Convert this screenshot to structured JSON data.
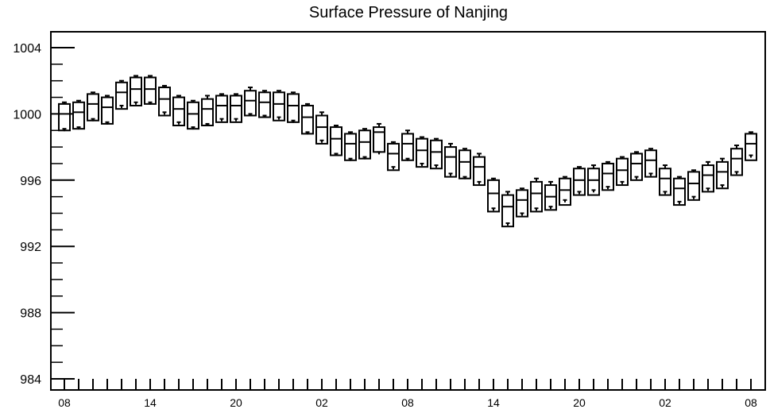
{
  "chart_data": {
    "type": "boxplot",
    "title": "Surface Pressure of Nanjing",
    "xlabel": "",
    "ylabel": "",
    "ylim": [
      984,
      1005
    ],
    "yticks": [
      984,
      988,
      992,
      996,
      1000,
      1004
    ],
    "y_minor_step": 1,
    "x_tick_labels": [
      "08",
      "14",
      "20",
      "02",
      "08",
      "14",
      "20",
      "02",
      "08"
    ],
    "x_tick_positions": [
      0,
      6,
      12,
      18,
      24,
      30,
      36,
      42,
      48
    ],
    "grid": false,
    "series": [
      {
        "boxes": [
          {
            "x": 0,
            "whisker_high": 1000.7,
            "q3": 1000.6,
            "median": 1000.0,
            "q1": 999.0,
            "mean": 999.1
          },
          {
            "x": 1,
            "whisker_high": 1000.8,
            "q3": 1000.7,
            "median": 1000.1,
            "q1": 999.1,
            "mean": 999.2
          },
          {
            "x": 2,
            "whisker_high": 1001.3,
            "q3": 1001.2,
            "median": 1000.6,
            "q1": 999.6,
            "mean": 999.7
          },
          {
            "x": 3,
            "whisker_high": 1001.1,
            "q3": 1001.0,
            "median": 1000.4,
            "q1": 999.4,
            "mean": 999.5
          },
          {
            "x": 4,
            "whisker_high": 1002.0,
            "q3": 1001.9,
            "median": 1001.3,
            "q1": 1000.3,
            "mean": 1000.5
          },
          {
            "x": 5,
            "whisker_high": 1002.3,
            "q3": 1002.2,
            "median": 1001.5,
            "q1": 1000.5,
            "mean": 1000.7
          },
          {
            "x": 6,
            "whisker_high": 1002.3,
            "q3": 1002.2,
            "median": 1001.5,
            "q1": 1000.6,
            "mean": 1000.7
          },
          {
            "x": 7,
            "whisker_high": 1001.7,
            "q3": 1001.6,
            "median": 1000.9,
            "q1": 999.9,
            "mean": 1000.1
          },
          {
            "x": 8,
            "whisker_high": 1001.1,
            "q3": 1001.0,
            "median": 1000.3,
            "q1": 999.3,
            "mean": 999.5
          },
          {
            "x": 9,
            "whisker_high": 1000.8,
            "q3": 1000.7,
            "median": 1000.0,
            "q1": 999.1,
            "mean": 999.2
          },
          {
            "x": 10,
            "whisker_high": 1001.1,
            "q3": 1000.9,
            "median": 1000.3,
            "q1": 999.3,
            "mean": 999.4
          },
          {
            "x": 11,
            "whisker_high": 1001.2,
            "q3": 1001.1,
            "median": 1000.5,
            "q1": 999.5,
            "mean": 999.7
          },
          {
            "x": 12,
            "whisker_high": 1001.2,
            "q3": 1001.1,
            "median": 1000.5,
            "q1": 999.5,
            "mean": 999.7
          },
          {
            "x": 13,
            "whisker_high": 1001.6,
            "q3": 1001.4,
            "median": 1000.8,
            "q1": 999.9,
            "mean": 1000.0
          },
          {
            "x": 14,
            "whisker_high": 1001.4,
            "q3": 1001.3,
            "median": 1000.7,
            "q1": 999.8,
            "mean": 999.9
          },
          {
            "x": 15,
            "whisker_high": 1001.4,
            "q3": 1001.3,
            "median": 1000.6,
            "q1": 999.6,
            "mean": 999.8
          },
          {
            "x": 16,
            "whisker_high": 1001.3,
            "q3": 1001.2,
            "median": 1000.5,
            "q1": 999.5,
            "mean": 999.6
          },
          {
            "x": 17,
            "whisker_high": 1000.6,
            "q3": 1000.5,
            "median": 999.8,
            "q1": 998.8,
            "mean": 998.9
          },
          {
            "x": 18,
            "whisker_high": 1000.1,
            "q3": 999.9,
            "median": 999.2,
            "q1": 998.2,
            "mean": 998.4
          },
          {
            "x": 19,
            "whisker_high": 999.3,
            "q3": 999.2,
            "median": 998.5,
            "q1": 997.5,
            "mean": 997.6
          },
          {
            "x": 20,
            "whisker_high": 998.9,
            "q3": 998.8,
            "median": 998.2,
            "q1": 997.2,
            "mean": 997.3
          },
          {
            "x": 21,
            "whisker_high": 999.1,
            "q3": 999.0,
            "median": 998.3,
            "q1": 997.3,
            "mean": 997.4
          },
          {
            "x": 22,
            "whisker_high": 999.4,
            "q3": 999.2,
            "median": 998.9,
            "q1": 997.7,
            "mean": 997.7
          },
          {
            "x": 23,
            "whisker_high": 998.3,
            "q3": 998.2,
            "median": 997.6,
            "q1": 996.6,
            "mean": 996.8
          },
          {
            "x": 24,
            "whisker_high": 999.0,
            "q3": 998.8,
            "median": 998.2,
            "q1": 997.2,
            "mean": 997.3
          },
          {
            "x": 25,
            "whisker_high": 998.6,
            "q3": 998.5,
            "median": 997.8,
            "q1": 996.8,
            "mean": 997.0
          },
          {
            "x": 26,
            "whisker_high": 998.5,
            "q3": 998.4,
            "median": 997.7,
            "q1": 996.7,
            "mean": 996.9
          },
          {
            "x": 27,
            "whisker_high": 998.2,
            "q3": 998.0,
            "median": 997.4,
            "q1": 996.2,
            "mean": 996.4
          },
          {
            "x": 28,
            "whisker_high": 997.9,
            "q3": 997.8,
            "median": 997.1,
            "q1": 996.1,
            "mean": 996.2
          },
          {
            "x": 29,
            "whisker_high": 997.6,
            "q3": 997.4,
            "median": 996.8,
            "q1": 995.7,
            "mean": 995.9
          },
          {
            "x": 30,
            "whisker_high": 996.1,
            "q3": 996.0,
            "median": 995.2,
            "q1": 994.1,
            "mean": 994.3
          },
          {
            "x": 31,
            "whisker_high": 995.3,
            "q3": 995.1,
            "median": 994.4,
            "q1": 993.2,
            "mean": 993.4
          },
          {
            "x": 32,
            "whisker_high": 995.5,
            "q3": 995.4,
            "median": 994.8,
            "q1": 993.8,
            "mean": 994.0
          },
          {
            "x": 33,
            "whisker_high": 996.1,
            "q3": 995.9,
            "median": 995.2,
            "q1": 994.1,
            "mean": 994.3
          },
          {
            "x": 34,
            "whisker_high": 995.9,
            "q3": 995.7,
            "median": 995.0,
            "q1": 994.2,
            "mean": 994.4
          },
          {
            "x": 35,
            "whisker_high": 996.2,
            "q3": 996.1,
            "median": 995.4,
            "q1": 994.5,
            "mean": 994.8
          },
          {
            "x": 36,
            "whisker_high": 996.8,
            "q3": 996.7,
            "median": 996.0,
            "q1": 995.1,
            "mean": 995.3
          },
          {
            "x": 37,
            "whisker_high": 996.9,
            "q3": 996.7,
            "median": 996.0,
            "q1": 995.1,
            "mean": 995.4
          },
          {
            "x": 38,
            "whisker_high": 997.1,
            "q3": 997.0,
            "median": 996.4,
            "q1": 995.4,
            "mean": 995.6
          },
          {
            "x": 39,
            "whisker_high": 997.4,
            "q3": 997.3,
            "median": 996.6,
            "q1": 995.7,
            "mean": 995.9
          },
          {
            "x": 40,
            "whisker_high": 997.7,
            "q3": 997.6,
            "median": 997.0,
            "q1": 996.0,
            "mean": 996.2
          },
          {
            "x": 41,
            "whisker_high": 997.9,
            "q3": 997.8,
            "median": 997.2,
            "q1": 996.2,
            "mean": 996.4
          },
          {
            "x": 42,
            "whisker_high": 996.9,
            "q3": 996.7,
            "median": 996.1,
            "q1": 995.1,
            "mean": 995.3
          },
          {
            "x": 43,
            "whisker_high": 996.2,
            "q3": 996.1,
            "median": 995.5,
            "q1": 994.5,
            "mean": 994.7
          },
          {
            "x": 44,
            "whisker_high": 996.6,
            "q3": 996.5,
            "median": 995.8,
            "q1": 994.8,
            "mean": 995.0
          },
          {
            "x": 45,
            "whisker_high": 997.1,
            "q3": 996.9,
            "median": 996.3,
            "q1": 995.3,
            "mean": 995.5
          },
          {
            "x": 46,
            "whisker_high": 997.3,
            "q3": 997.1,
            "median": 996.5,
            "q1": 995.5,
            "mean": 995.7
          },
          {
            "x": 47,
            "whisker_high": 998.1,
            "q3": 997.9,
            "median": 997.3,
            "q1": 996.3,
            "mean": 996.5
          },
          {
            "x": 48,
            "whisker_high": 998.9,
            "q3": 998.8,
            "median": 998.2,
            "q1": 997.2,
            "mean": 997.5
          }
        ]
      }
    ]
  }
}
